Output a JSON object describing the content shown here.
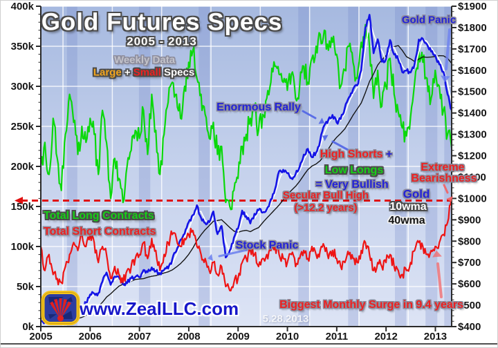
{
  "header": {
    "title": "Gold Futures Specs",
    "subtitle": "2005 - 2013",
    "note1": "Weekly Data",
    "note2_large": "Large",
    "note2_plus": "+",
    "note2_small": "Small",
    "note2_specs": "Specs"
  },
  "annotations": {
    "gold_panic": "Gold Panic",
    "enormous_rally": "Enormous Rally",
    "high_shorts": "High Shorts",
    "plus_sign": "+",
    "low_longs": "Low Longs",
    "very_bullish": "= Very Bullish",
    "extreme_line1": "Extreme",
    "extreme_line2": "Bearishness",
    "secular_line1": "Secular Bull High",
    "secular_line2": "(>12.2 years)",
    "gold_label": "Gold",
    "wma10": "10wma",
    "wma40": "40wma",
    "stock_panic": "Stock Panic",
    "total_long": "Total Long Contracts",
    "total_short": "Total Short Contracts",
    "surge": "Biggest Monthly Surge in 9.4 years",
    "website": "www.ZealLLC.com",
    "date_stamp": "5.28.2013"
  },
  "chart_data": {
    "type": "line",
    "title": "Gold Futures Specs",
    "subtitle": "2005 - 2013",
    "notes": [
      "Weekly Data",
      "Large + Small Specs"
    ],
    "grid": true,
    "x_axis": {
      "min_year": 2005,
      "max_year": 2013.33,
      "tick_labels": [
        "2005",
        "2006",
        "2007",
        "2008",
        "2009",
        "2010",
        "2011",
        "2012",
        "2013"
      ]
    },
    "left_axis": {
      "min": 0,
      "max": 400,
      "step": 50,
      "minor_step": 10,
      "tick_labels": [
        "400k",
        "350k",
        "300k",
        "250k",
        "200k",
        "150k",
        "100k",
        "50k",
        "0k"
      ],
      "units": "contracts (thousands)"
    },
    "right_axis": {
      "min": 400,
      "max": 1900,
      "step": 100,
      "minor_step": 25,
      "tick_labels": [
        "$1900",
        "$1800",
        "$1700",
        "$1600",
        "$1500",
        "$1400",
        "$1300",
        "$1200",
        "$1100",
        "$1000",
        "$900",
        "$800",
        "$700",
        "$600",
        "$500",
        "$400"
      ],
      "units": "gold price (USD)"
    },
    "reference_line": {
      "label": "Secular Bull High (>12.2 years)",
      "axis": "right",
      "value": 990,
      "style": "dashed",
      "color": "#e01010"
    },
    "background_bands": [
      {
        "from": 2005.53,
        "to": 2005.74
      },
      {
        "from": 2006.99,
        "to": 2007.22
      },
      {
        "from": 2008.2,
        "to": 2008.42
      },
      {
        "from": 2010.22,
        "to": 2010.44
      },
      {
        "from": 2011.23,
        "to": 2011.44
      },
      {
        "from": 2012.18,
        "to": 2012.41
      },
      {
        "from": 2012.8,
        "to": 2013.04
      },
      {
        "from": 2013.18,
        "to": 2013.33
      }
    ],
    "sampling": "monthly approximations read from weekly chart, Jan 2005 - May 2013",
    "series": [
      {
        "name": "Total Long Contracts",
        "axis": "left",
        "color": "#0ad80a",
        "values": [
          200,
          230,
          190,
          260,
          210,
          170,
          240,
          290,
          255,
          215,
          250,
          230,
          260,
          240,
          190,
          270,
          230,
          160,
          210,
          185,
          155,
          200,
          220,
          245,
          235,
          270,
          215,
          290,
          245,
          190,
          240,
          280,
          305,
          290,
          260,
          300,
          330,
          345,
          310,
          290,
          265,
          235,
          255,
          215,
          225,
          155,
          150,
          170,
          185,
          225,
          240,
          260,
          275,
          245,
          265,
          285,
          305,
          325,
          315,
          305,
          295,
          315,
          285,
          300,
          325,
          305,
          335,
          350,
          365,
          370,
          345,
          355,
          340,
          300,
          320,
          350,
          330,
          310,
          355,
          377,
          350,
          285,
          320,
          275,
          300,
          335,
          290,
          268,
          248,
          238,
          262,
          305,
          345,
          330,
          310,
          285,
          320,
          300,
          270,
          240,
          223
        ]
      },
      {
        "name": "Total Short Contracts",
        "axis": "left",
        "color": "#ee1414",
        "values": [
          100,
          70,
          90,
          65,
          60,
          55,
          75,
          90,
          105,
          95,
          115,
          100,
          115,
          105,
          80,
          100,
          90,
          60,
          75,
          65,
          55,
          70,
          75,
          85,
          90,
          105,
          85,
          110,
          95,
          70,
          90,
          105,
          115,
          110,
          100,
          110,
          115,
          120,
          100,
          90,
          85,
          70,
          80,
          65,
          75,
          50,
          45,
          55,
          60,
          80,
          85,
          95,
          90,
          75,
          85,
          90,
          95,
          100,
          90,
          85,
          80,
          90,
          75,
          85,
          95,
          85,
          100,
          90,
          95,
          100,
          85,
          95,
          85,
          75,
          80,
          90,
          85,
          80,
          95,
          105,
          90,
          70,
          80,
          75,
          80,
          90,
          75,
          70,
          65,
          70,
          80,
          95,
          105,
          100,
          90,
          95,
          100,
          105,
          115,
          130,
          161
        ]
      },
      {
        "name": "Gold",
        "axis": "right",
        "color": "#1414e6",
        "values": [
          425,
          423,
          434,
          429,
          421,
          437,
          429,
          437,
          456,
          470,
          476,
          513,
          550,
          555,
          557,
          611,
          653,
          596,
          634,
          632,
          599,
          603,
          627,
          632,
          631,
          665,
          655,
          677,
          659,
          650,
          665,
          672,
          715,
          754,
          806,
          834,
          889,
          922,
          968,
          909,
          885,
          889,
          939,
          833,
          871,
          724,
          757,
          816,
          858,
          943,
          916,
          883,
          928,
          945,
          934,
          949,
          996,
          1043,
          1127,
          1134,
          1118,
          1095,
          1113,
          1148,
          1205,
          1232,
          1193,
          1215,
          1271,
          1342,
          1369,
          1391,
          1356,
          1372,
          1424,
          1473,
          1511,
          1529,
          1600,
          1800,
          1860,
          1680,
          1745,
          1640,
          1652,
          1742,
          1674,
          1650,
          1591,
          1598,
          1590,
          1630,
          1744,
          1747,
          1721,
          1688,
          1671,
          1627,
          1593,
          1487,
          1414
        ]
      },
      {
        "name": "10wma",
        "axis": "right",
        "color": "#ffffff",
        "derived_from": "Gold",
        "smooth_window": 2
      },
      {
        "name": "40wma",
        "axis": "right",
        "color": "#141414",
        "derived_from": "Gold",
        "smooth_window": 9
      }
    ]
  }
}
